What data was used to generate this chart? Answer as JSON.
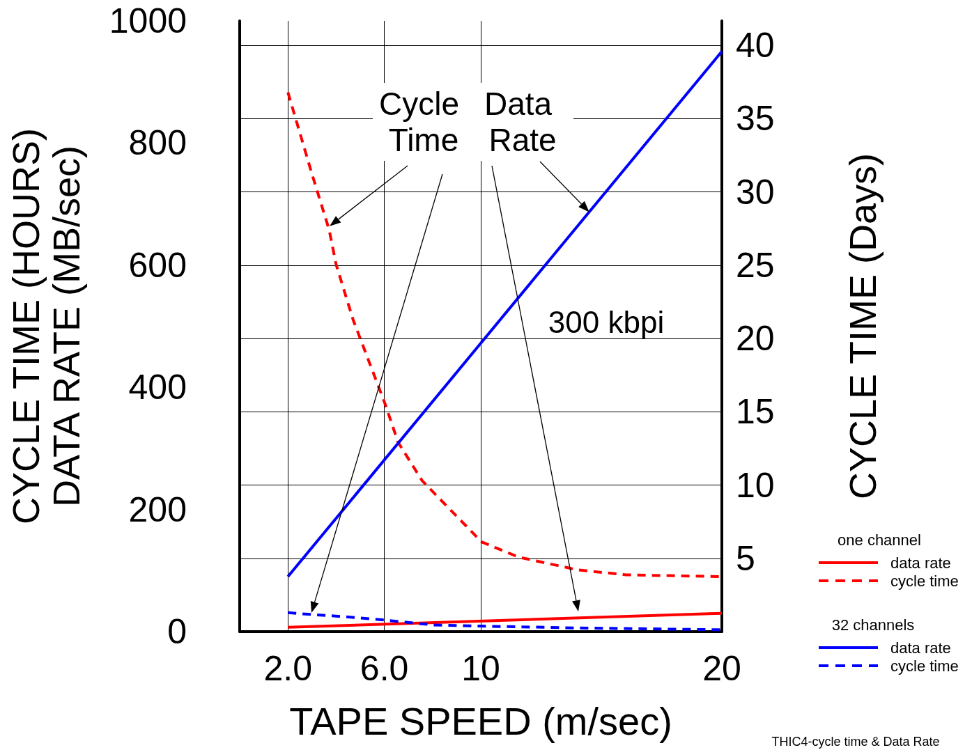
{
  "chart_data": {
    "type": "line",
    "xlabel": "TAPE SPEED (m/sec)",
    "ylabel": "CYCLE TIME (HOURS)\nDATA RATE (MB/sec)",
    "y2label": "CYCLE TIME (Days)",
    "xlim": [
      0,
      20
    ],
    "xticks": [
      {
        "value": 2,
        "label": "2.0"
      },
      {
        "value": 6,
        "label": "6.0"
      },
      10,
      20
    ],
    "ylim": [
      0,
      1000
    ],
    "yticks": [
      0,
      200,
      400,
      600,
      800,
      1000
    ],
    "y2lim": [
      0,
      41.67
    ],
    "y2ticks": [
      5,
      10,
      15,
      20,
      25,
      30,
      35,
      40
    ],
    "grid": true,
    "legend": "right",
    "marker": "none",
    "series": [
      {
        "name": "data rate",
        "color": "#ff0000",
        "line_style": "solid",
        "x": [
          2,
          20
        ],
        "values": [
          7,
          30
        ]
      },
      {
        "name": "cycle time",
        "color": "#ff0000",
        "line_style": "dashed",
        "x": [
          2,
          3.0,
          3.71,
          4.0,
          4.71,
          6.03,
          6.57,
          7.57,
          10.03,
          11.57,
          14.03,
          16.03,
          20
        ],
        "values": [
          883,
          749,
          658,
          601,
          510,
          373,
          310,
          247,
          147,
          122,
          101,
          93,
          90
        ]
      },
      {
        "name": "data rate",
        "color": "#0000ff",
        "line_style": "solid",
        "x": [
          2,
          20
        ],
        "values": [
          90,
          950
        ]
      },
      {
        "name": "cycle time",
        "color": "#0000ff",
        "line_style": "dashed",
        "x": [
          2,
          3,
          4.5,
          6,
          8,
          10,
          14,
          20
        ],
        "values": [
          31,
          28,
          24,
          19,
          11,
          9,
          6,
          3
        ]
      }
    ],
    "annotations": [
      {
        "text": "Cycle Time",
        "x": 3.73,
        "y": 664
      },
      {
        "text": "Data Rate",
        "x": 14.5,
        "y": 687
      },
      "300 kbpi",
      "one channel",
      "32 channels",
      "THIC4-cycle time & Data Rate"
    ]
  }
}
